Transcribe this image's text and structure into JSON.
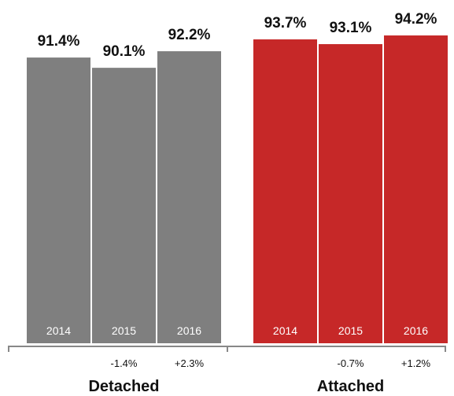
{
  "chart_data": {
    "type": "bar",
    "value_unit": "%",
    "colors": {
      "Detached": "#7f7f7f",
      "Attached": "#c62828",
      "axis": "#888888"
    },
    "groups": [
      {
        "name": "Detached",
        "bars": [
          {
            "year": "2014",
            "value": 91.4,
            "label": "91.4%",
            "change": ""
          },
          {
            "year": "2015",
            "value": 90.1,
            "label": "90.1%",
            "change": "-1.4%"
          },
          {
            "year": "2016",
            "value": 92.2,
            "label": "92.2%",
            "change": "+2.3%"
          }
        ]
      },
      {
        "name": "Attached",
        "bars": [
          {
            "year": "2014",
            "value": 93.7,
            "label": "93.7%",
            "change": ""
          },
          {
            "year": "2015",
            "value": 93.1,
            "label": "93.1%",
            "change": "-0.7%"
          },
          {
            "year": "2016",
            "value": 94.2,
            "label": "94.2%",
            "change": "+1.2%"
          }
        ]
      }
    ]
  }
}
